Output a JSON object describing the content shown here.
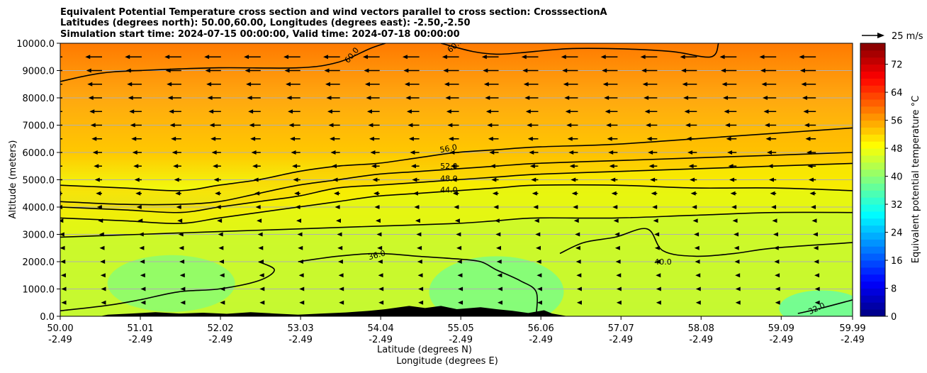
{
  "chart_data": {
    "type": "heatmap",
    "title_lines": [
      "Equivalent Potential Temperature cross section and wind vectors parallel to cross section: CrosssectionA",
      "Latitudes (degrees north): 50.00,60.00, Longitudes (degrees east): -2.50,-2.50",
      "Simulation start time: 2024-07-15 00:00:00, Valid time: 2024-07-18 00:00:00"
    ],
    "xlabel_lines": [
      "Latitude (degrees N)",
      "Longitude (degrees E)"
    ],
    "ylabel": "Altitude (meters)",
    "colorbar_label": "Equivalent potential temperature °C",
    "x_ticks": [
      {
        "lat": "50.00",
        "lon": "-2.49",
        "v": 50.0
      },
      {
        "lat": "51.01",
        "lon": "-2.49",
        "v": 51.01
      },
      {
        "lat": "52.02",
        "lon": "-2.49",
        "v": 52.02
      },
      {
        "lat": "53.03",
        "lon": "-2.49",
        "v": 53.03
      },
      {
        "lat": "54.04",
        "lon": "-2.49",
        "v": 54.04
      },
      {
        "lat": "55.05",
        "lon": "-2.49",
        "v": 55.05
      },
      {
        "lat": "56.06",
        "lon": "-2.49",
        "v": 56.06
      },
      {
        "lat": "57.07",
        "lon": "-2.49",
        "v": 57.07
      },
      {
        "lat": "58.08",
        "lon": "-2.49",
        "v": 58.08
      },
      {
        "lat": "59.09",
        "lon": "-2.49",
        "v": 59.09
      },
      {
        "lat": "59.99",
        "lon": "-2.49",
        "v": 59.99
      }
    ],
    "y_ticks": [
      "0.0",
      "1000.0",
      "2000.0",
      "3000.0",
      "4000.0",
      "5000.0",
      "6000.0",
      "7000.0",
      "8000.0",
      "9000.0",
      "10000.0"
    ],
    "xlim": [
      50.0,
      59.99
    ],
    "ylim": [
      0,
      10000
    ],
    "colorbar_ticks": [
      "0",
      "8",
      "16",
      "24",
      "32",
      "40",
      "48",
      "56",
      "64",
      "72"
    ],
    "colorbar_range": [
      0,
      78
    ],
    "colormap": "jet",
    "quiver_key_label": "25 m/s",
    "grid": "horizontal",
    "contour_lines": [
      {
        "level": 60,
        "label": "60.0",
        "points": [
          [
            50.0,
            8600
          ],
          [
            50.5,
            8900
          ],
          [
            51.0,
            9000
          ],
          [
            52.0,
            9100
          ],
          [
            53.0,
            9100
          ],
          [
            53.5,
            9300
          ],
          [
            53.9,
            9800
          ],
          [
            54.1,
            10000
          ]
        ]
      },
      {
        "level": 60,
        "label": "60.0",
        "points": [
          [
            54.8,
            10000
          ],
          [
            55.2,
            9700
          ],
          [
            55.5,
            9600
          ],
          [
            55.8,
            9650
          ],
          [
            56.4,
            9800
          ],
          [
            57.0,
            9800
          ],
          [
            57.7,
            9700
          ],
          [
            58.2,
            9500
          ],
          [
            58.3,
            10000
          ]
        ]
      },
      {
        "level": 56,
        "label": "56.0",
        "points": [
          [
            50.0,
            4800
          ],
          [
            50.8,
            4700
          ],
          [
            51.5,
            4600
          ],
          [
            52.0,
            4800
          ],
          [
            52.5,
            5000
          ],
          [
            53.0,
            5300
          ],
          [
            53.5,
            5500
          ],
          [
            54.0,
            5600
          ],
          [
            54.5,
            5800
          ],
          [
            55.0,
            6000
          ],
          [
            55.5,
            6100
          ],
          [
            56.0,
            6200
          ],
          [
            57.0,
            6300
          ],
          [
            58.0,
            6500
          ],
          [
            59.0,
            6700
          ],
          [
            59.99,
            6900
          ]
        ]
      },
      {
        "level": 52,
        "label": "52.0",
        "points": [
          [
            50.0,
            4200
          ],
          [
            50.8,
            4100
          ],
          [
            51.5,
            4100
          ],
          [
            52.0,
            4200
          ],
          [
            52.5,
            4500
          ],
          [
            53.0,
            4800
          ],
          [
            53.5,
            5000
          ],
          [
            54.0,
            5200
          ],
          [
            54.5,
            5300
          ],
          [
            55.0,
            5400
          ],
          [
            55.5,
            5500
          ],
          [
            56.0,
            5600
          ],
          [
            57.0,
            5700
          ],
          [
            58.0,
            5800
          ],
          [
            59.0,
            5900
          ],
          [
            59.99,
            6000
          ]
        ]
      },
      {
        "level": 48,
        "label": "48.0",
        "points": [
          [
            50.0,
            4000
          ],
          [
            50.8,
            3900
          ],
          [
            51.5,
            3800
          ],
          [
            52.0,
            4000
          ],
          [
            52.5,
            4200
          ],
          [
            53.0,
            4400
          ],
          [
            53.5,
            4700
          ],
          [
            54.0,
            4800
          ],
          [
            54.5,
            4900
          ],
          [
            55.0,
            5000
          ],
          [
            55.5,
            5100
          ],
          [
            56.0,
            5200
          ],
          [
            57.0,
            5300
          ],
          [
            58.0,
            5400
          ],
          [
            59.0,
            5500
          ],
          [
            59.99,
            5600
          ]
        ]
      },
      {
        "level": 44,
        "label": "44.0",
        "points": [
          [
            50.0,
            3600
          ],
          [
            50.8,
            3500
          ],
          [
            51.5,
            3400
          ],
          [
            52.0,
            3600
          ],
          [
            52.5,
            3800
          ],
          [
            53.0,
            4000
          ],
          [
            53.5,
            4200
          ],
          [
            54.0,
            4400
          ],
          [
            54.5,
            4500
          ],
          [
            55.0,
            4600
          ],
          [
            55.5,
            4700
          ],
          [
            56.0,
            4800
          ],
          [
            57.0,
            4800
          ],
          [
            58.0,
            4700
          ],
          [
            59.0,
            4700
          ],
          [
            59.99,
            4600
          ]
        ]
      },
      {
        "level": 40,
        "label": "40.0",
        "points": [
          [
            50.0,
            2900
          ],
          [
            51.0,
            3000
          ],
          [
            52.0,
            3100
          ],
          [
            53.0,
            3200
          ],
          [
            54.0,
            3300
          ],
          [
            55.0,
            3400
          ],
          [
            55.5,
            3500
          ],
          [
            56.0,
            3600
          ],
          [
            57.0,
            3600
          ],
          [
            58.0,
            3700
          ],
          [
            59.0,
            3800
          ],
          [
            59.99,
            3800
          ]
        ]
      },
      {
        "level": 36,
        "label": "36.0",
        "points": [
          [
            53.0,
            2000
          ],
          [
            53.5,
            2200
          ],
          [
            54.0,
            2300
          ],
          [
            54.5,
            2200
          ],
          [
            55.0,
            2100
          ],
          [
            55.3,
            2000
          ],
          [
            55.5,
            1700
          ],
          [
            55.8,
            1300
          ],
          [
            56.0,
            900
          ],
          [
            56.0,
            0
          ]
        ]
      },
      {
        "level": 40,
        "label": "40.0",
        "points": [
          [
            56.3,
            2300
          ],
          [
            56.6,
            2700
          ],
          [
            57.0,
            2900
          ],
          [
            57.4,
            3200
          ],
          [
            57.6,
            2400
          ],
          [
            58.0,
            2200
          ],
          [
            58.5,
            2300
          ],
          [
            59.0,
            2500
          ],
          [
            59.99,
            2700
          ]
        ]
      },
      {
        "level": 32,
        "label": "32.0",
        "points": [
          [
            59.3,
            100
          ],
          [
            59.6,
            300
          ],
          [
            59.99,
            600
          ]
        ]
      },
      {
        "level": 40,
        "label": "40.0",
        "points": [
          [
            50.0,
            200
          ],
          [
            50.6,
            400
          ],
          [
            51.0,
            600
          ],
          [
            51.5,
            900
          ],
          [
            52.0,
            1000
          ],
          [
            52.5,
            1300
          ],
          [
            52.7,
            1700
          ],
          [
            52.5,
            2000
          ]
        ]
      }
    ]
  }
}
